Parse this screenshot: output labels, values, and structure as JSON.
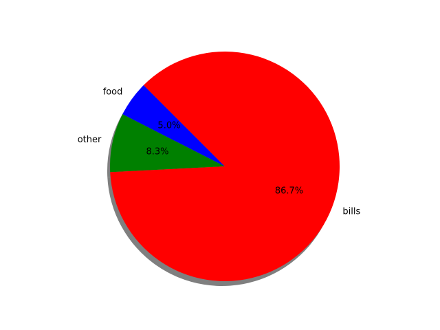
{
  "chart_data": {
    "type": "pie",
    "slices": [
      {
        "label": "food",
        "value": 5.0,
        "percent_label": "5.0%",
        "color": "#0000ff"
      },
      {
        "label": "other",
        "value": 8.3,
        "percent_label": "8.3%",
        "color": "#008000"
      },
      {
        "label": "bills",
        "value": 86.7,
        "percent_label": "86.7%",
        "color": "#ff0000"
      }
    ],
    "start_angle_deg": 135,
    "counterclockwise": true,
    "shadow": true,
    "shadow_color": "#7f7f7f"
  }
}
